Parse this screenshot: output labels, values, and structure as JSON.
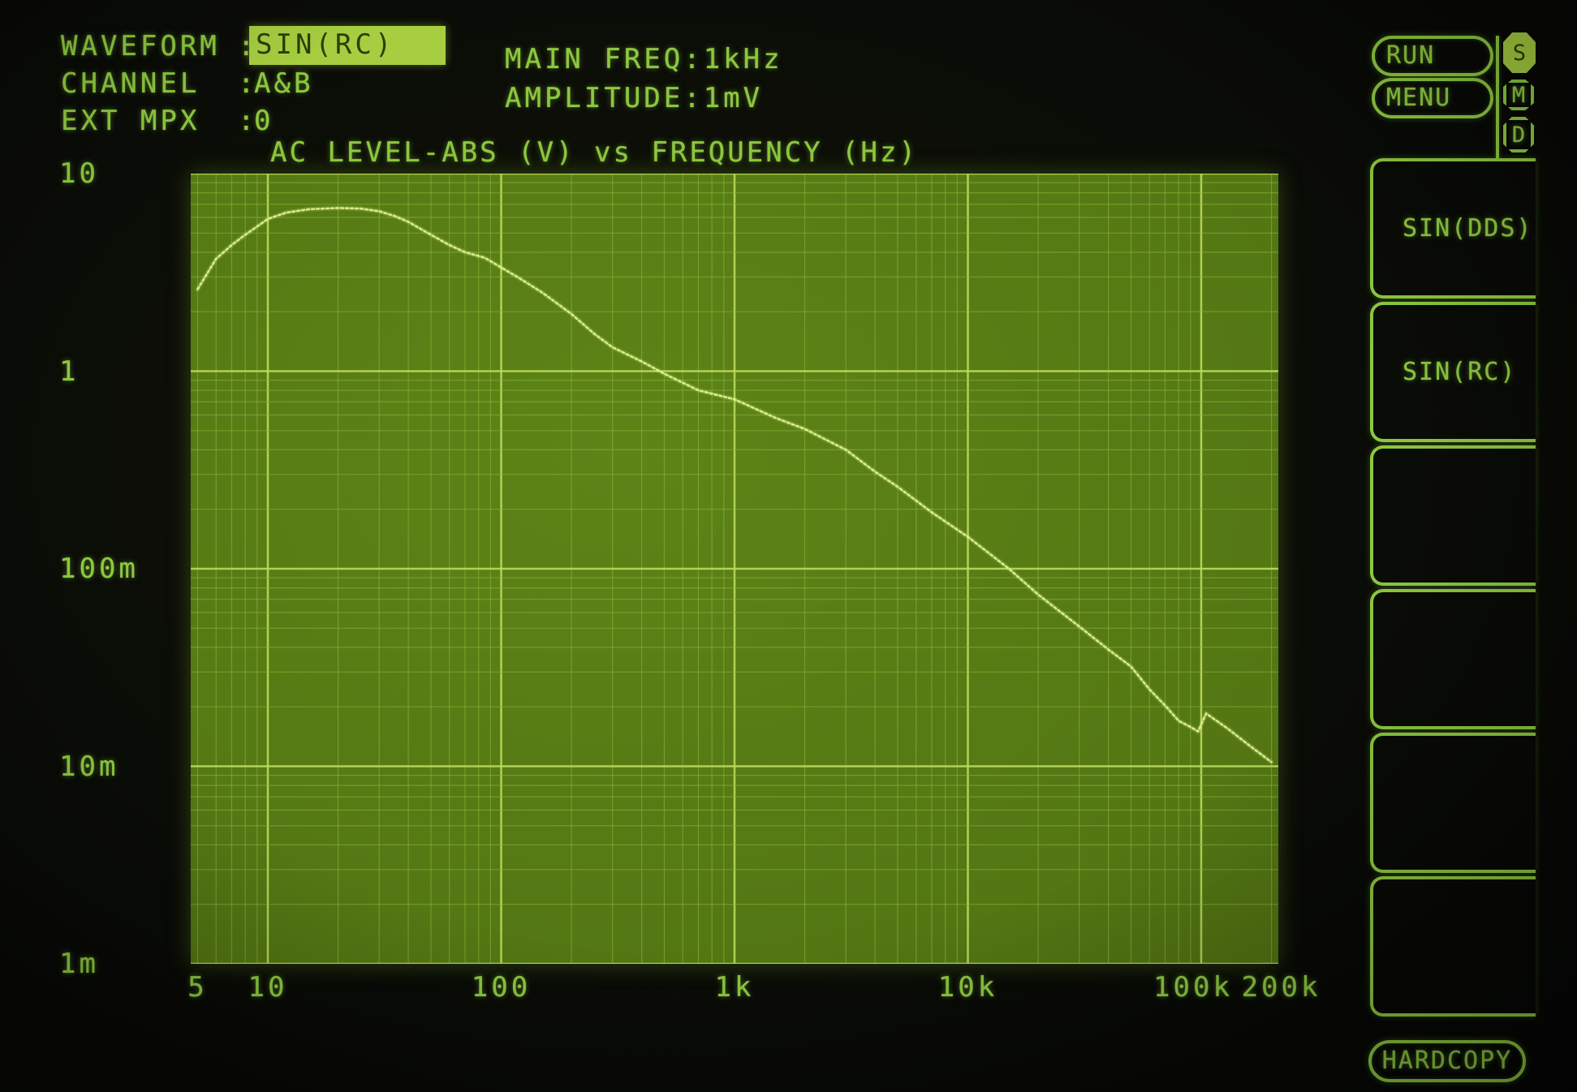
{
  "colors": {
    "green": "#8cc83e",
    "hl-bg": "#a6ce40",
    "hl-tx": "#2c3f08",
    "plot-bg": "#517312",
    "plot-bg2": "#5d8417",
    "grid-minor": "#8db839",
    "grid-major": "#bcdb5c",
    "curve": "#dff290"
  },
  "header": {
    "params": [
      {
        "label": "WAVEFORM",
        "value": "SIN(RC)",
        "highlighted": true
      },
      {
        "label": "CHANNEL",
        "value": "A&B",
        "highlighted": false
      },
      {
        "label": "EXT MPX",
        "value": "0",
        "highlighted": false
      }
    ],
    "info": [
      {
        "label": "MAIN FREQ",
        "value": "1kHz"
      },
      {
        "label": "AMPLITUDE",
        "value": "1mV"
      }
    ],
    "run_label": "RUN",
    "menu_label": "MENU",
    "badges": [
      {
        "label": "S",
        "active": true
      },
      {
        "label": "M",
        "active": false
      },
      {
        "label": "D",
        "active": false
      }
    ]
  },
  "sidebar": {
    "buttons": [
      {
        "label": "SIN(DDS)"
      },
      {
        "label": "SIN(RC)"
      },
      {
        "label": ""
      },
      {
        "label": ""
      },
      {
        "label": ""
      },
      {
        "label": ""
      }
    ],
    "hardcopy_label": "HARDCOPY"
  },
  "chart_data": {
    "type": "line",
    "title": "AC LEVEL-ABS (V) vs FREQUENCY (Hz)",
    "xlabel": "FREQUENCY (Hz)",
    "ylabel": "AC LEVEL-ABS (V)",
    "x_scale": "log",
    "y_scale": "log",
    "xlim": [
      4.67,
      214000
    ],
    "ylim": [
      0.001,
      10
    ],
    "grid": true,
    "x_ticks": [
      {
        "f": 5,
        "label": "5"
      },
      {
        "f": 10,
        "label": "10"
      },
      {
        "f": 100,
        "label": "100"
      },
      {
        "f": 1000,
        "label": "1k"
      },
      {
        "f": 10000,
        "label": "10k"
      },
      {
        "f": 100000,
        "label": "100k"
      },
      {
        "f": 200000,
        "label": "200k"
      }
    ],
    "y_ticks": [
      {
        "v": 10,
        "label": "10"
      },
      {
        "v": 1,
        "label": "1"
      },
      {
        "v": 0.1,
        "label": "100m"
      },
      {
        "v": 0.01,
        "label": "10m"
      },
      {
        "v": 0.001,
        "label": "1m"
      }
    ],
    "series": [
      {
        "name": "AC LEVEL-ABS",
        "points": [
          [
            5,
            2.6
          ],
          [
            6,
            3.7
          ],
          [
            7,
            4.35
          ],
          [
            8,
            4.9
          ],
          [
            9,
            5.4
          ],
          [
            10,
            5.9
          ],
          [
            12,
            6.35
          ],
          [
            15,
            6.6
          ],
          [
            20,
            6.7
          ],
          [
            25,
            6.65
          ],
          [
            30,
            6.45
          ],
          [
            35,
            6.1
          ],
          [
            40,
            5.7
          ],
          [
            50,
            4.9
          ],
          [
            60,
            4.35
          ],
          [
            70,
            4.0
          ],
          [
            85,
            3.75
          ],
          [
            100,
            3.35
          ],
          [
            120,
            2.95
          ],
          [
            150,
            2.5
          ],
          [
            200,
            1.95
          ],
          [
            250,
            1.55
          ],
          [
            300,
            1.32
          ],
          [
            400,
            1.12
          ],
          [
            500,
            0.97
          ],
          [
            700,
            0.8
          ],
          [
            1000,
            0.72
          ],
          [
            1500,
            0.58
          ],
          [
            2000,
            0.51
          ],
          [
            3000,
            0.4
          ],
          [
            4000,
            0.31
          ],
          [
            5000,
            0.26
          ],
          [
            7000,
            0.193
          ],
          [
            10000,
            0.145
          ],
          [
            15000,
            0.1
          ],
          [
            20000,
            0.074
          ],
          [
            30000,
            0.051
          ],
          [
            40000,
            0.039
          ],
          [
            50000,
            0.032
          ],
          [
            60000,
            0.0245
          ],
          [
            70000,
            0.0203
          ],
          [
            80000,
            0.017
          ],
          [
            90000,
            0.0158
          ],
          [
            97000,
            0.015
          ],
          [
            105000,
            0.0185
          ],
          [
            130000,
            0.0155
          ],
          [
            160000,
            0.0128
          ],
          [
            200000,
            0.0105
          ]
        ]
      }
    ]
  }
}
